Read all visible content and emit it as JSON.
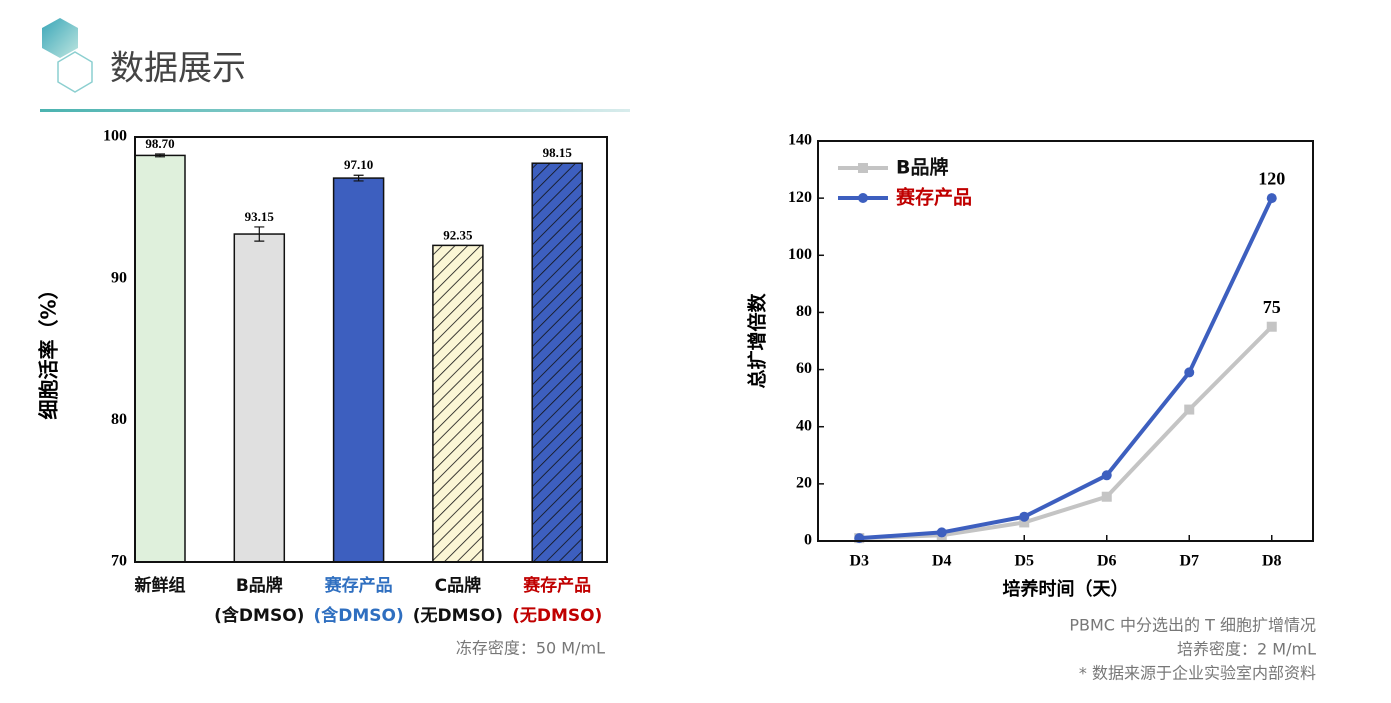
{
  "header": {
    "title": "数据展示"
  },
  "chart_data": [
    {
      "type": "bar",
      "ylabel": "细胞活率（%）",
      "categories": [
        [
          "新鲜组"
        ],
        [
          "B品牌",
          "(含DMSO)"
        ],
        [
          "赛存产品",
          "(含DMSO)"
        ],
        [
          "C品牌",
          "(无DMSO)"
        ],
        [
          "赛存产品",
          "(无DMSO)"
        ]
      ],
      "category_colors": [
        "#111111",
        "#111111",
        "#2f6fc0",
        "#111111",
        "#c00000"
      ],
      "values": [
        98.7,
        93.15,
        97.1,
        92.35,
        98.15
      ],
      "value_labels": [
        "98.70",
        "93.15",
        "97.10",
        "92.35",
        "98.15"
      ],
      "errors": [
        0.1,
        0.5,
        0.2,
        0,
        0
      ],
      "colors": [
        "#dff0dc",
        "#e0e0e0",
        "#3d5fbf",
        "#fbf6d5",
        "#3d5fbf"
      ],
      "hatch": [
        false,
        false,
        false,
        true,
        true
      ],
      "ylim": [
        70,
        100
      ],
      "yticks": [
        70,
        80,
        90,
        100
      ],
      "note": "冻存密度：50 M/mL"
    },
    {
      "type": "line",
      "xlabel": "培养时间（天）",
      "ylabel": "总扩增倍数",
      "categories": [
        "D3",
        "D4",
        "D5",
        "D6",
        "D7",
        "D8"
      ],
      "series": [
        {
          "name": "B品牌",
          "color": "#c4c4c4",
          "legend_text_color": "#111111",
          "marker": "square",
          "values": [
            1,
            2,
            6.5,
            15.5,
            46,
            75
          ]
        },
        {
          "name": "赛存产品",
          "color": "#3d5fbf",
          "legend_text_color": "#c00000",
          "marker": "circle",
          "values": [
            1,
            3,
            8.5,
            23,
            59,
            120
          ]
        }
      ],
      "ylim": [
        0,
        140
      ],
      "yticks": [
        0,
        20,
        40,
        60,
        80,
        100,
        120,
        140
      ],
      "legend": "upper left",
      "notes": [
        "PBMC 中分选出的 T 细胞扩增情况",
        "培养密度：2 M/mL",
        "* 数据来源于企业实验室内部资料"
      ]
    }
  ]
}
